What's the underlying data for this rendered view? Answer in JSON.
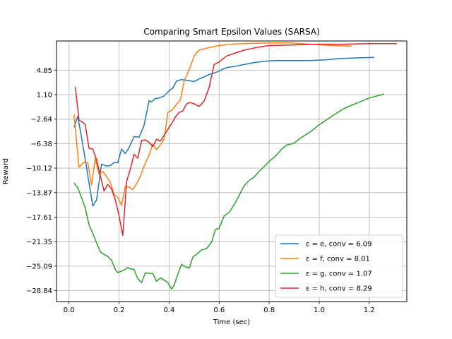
{
  "chart_data": {
    "type": "line",
    "title": "Comparing Smart Epsilon Values (SARSA)",
    "xlabel": "Time (sec)",
    "ylabel": "Reward",
    "xlim": [
      -0.05,
      1.35
    ],
    "ylim": [
      -30.5,
      9.3
    ],
    "xticks": [
      0.0,
      0.2,
      0.4,
      0.6,
      0.8,
      1.0,
      1.2
    ],
    "xtick_labels": [
      "0.0",
      "0.2",
      "0.4",
      "0.6",
      "0.8",
      "1.0",
      "1.2"
    ],
    "yticks": [
      4.85,
      1.1,
      -2.64,
      -6.38,
      -10.12,
      -13.87,
      -17.61,
      -21.35,
      -25.09,
      -28.84
    ],
    "ytick_labels": [
      "4.85",
      "1.10",
      "−2.64",
      "−6.38",
      "−10.12",
      "−13.87",
      "−17.61",
      "−21.35",
      "−25.09",
      "−28.84"
    ],
    "grid": true,
    "legend_position": "bottom-right",
    "series": [
      {
        "name": "ε = e, conv = 6.09",
        "color": "#1f77b4",
        "x": [
          0.02,
          0.035,
          0.05,
          0.065,
          0.08,
          0.095,
          0.11,
          0.13,
          0.15,
          0.165,
          0.18,
          0.195,
          0.21,
          0.225,
          0.24,
          0.26,
          0.28,
          0.3,
          0.32,
          0.33,
          0.345,
          0.36,
          0.38,
          0.4,
          0.415,
          0.43,
          0.45,
          0.47,
          0.5,
          0.52,
          0.54,
          0.56,
          0.58,
          0.6,
          0.62,
          0.64,
          0.66,
          0.7,
          0.74,
          0.78,
          0.82,
          0.86,
          0.9,
          0.96,
          1.02,
          1.08,
          1.14,
          1.22
        ],
        "y": [
          -3.9,
          -2.2,
          -5.4,
          -8.8,
          -12.4,
          -15.9,
          -15.0,
          -9.5,
          -9.8,
          -9.7,
          -9.3,
          -9.3,
          -7.2,
          -7.9,
          -7.0,
          -5.3,
          -5.4,
          -3.6,
          0.2,
          0.0,
          0.5,
          0.6,
          0.9,
          1.7,
          2.1,
          3.2,
          3.4,
          3.3,
          3.1,
          3.5,
          3.8,
          4.2,
          4.4,
          4.7,
          5.1,
          5.3,
          5.4,
          5.7,
          6.0,
          6.2,
          6.3,
          6.3,
          6.3,
          6.3,
          6.4,
          6.6,
          6.7,
          6.8
        ]
      },
      {
        "name": "ε = f, conv = 8.01",
        "color": "#ff7f0e",
        "x": [
          0.02,
          0.04,
          0.06,
          0.075,
          0.09,
          0.105,
          0.12,
          0.135,
          0.15,
          0.165,
          0.18,
          0.195,
          0.21,
          0.225,
          0.24,
          0.255,
          0.27,
          0.285,
          0.3,
          0.32,
          0.335,
          0.35,
          0.365,
          0.38,
          0.395,
          0.41,
          0.43,
          0.445,
          0.46,
          0.48,
          0.5,
          0.52,
          0.56,
          0.6,
          0.65,
          0.7,
          0.8,
          0.88,
          0.96,
          1.05,
          1.13
        ],
        "y": [
          -1.9,
          -10.0,
          -9.2,
          -9.3,
          -12.7,
          -8.6,
          -11.1,
          -10.6,
          -11.4,
          -12.3,
          -14.1,
          -14.6,
          -15.8,
          -12.9,
          -13.0,
          -13.4,
          -12.5,
          -11.4,
          -9.8,
          -8.1,
          -6.5,
          -7.3,
          -6.6,
          -5.7,
          -1.6,
          -1.3,
          -0.4,
          0.3,
          3.2,
          4.9,
          7.0,
          7.9,
          8.3,
          8.6,
          8.8,
          8.9,
          9.0,
          9.0,
          8.8,
          8.6,
          8.5
        ]
      },
      {
        "name": "ε = g, conv = 1.07",
        "color": "#2ca02c",
        "x": [
          0.02,
          0.035,
          0.05,
          0.065,
          0.08,
          0.095,
          0.11,
          0.125,
          0.14,
          0.155,
          0.17,
          0.185,
          0.195,
          0.205,
          0.22,
          0.235,
          0.245,
          0.26,
          0.275,
          0.29,
          0.305,
          0.32,
          0.335,
          0.35,
          0.365,
          0.38,
          0.395,
          0.41,
          0.42,
          0.435,
          0.45,
          0.465,
          0.48,
          0.495,
          0.51,
          0.53,
          0.55,
          0.57,
          0.585,
          0.6,
          0.62,
          0.64,
          0.66,
          0.68,
          0.7,
          0.72,
          0.74,
          0.76,
          0.78,
          0.8,
          0.83,
          0.85,
          0.87,
          0.9,
          0.93,
          0.96,
          1.0,
          1.05,
          1.1,
          1.15,
          1.2,
          1.26
        ],
        "y": [
          -12.4,
          -13.1,
          -14.6,
          -16.2,
          -18.8,
          -20.1,
          -21.5,
          -22.9,
          -23.3,
          -23.6,
          -24.2,
          -25.6,
          -26.1,
          -25.9,
          -25.7,
          -25.3,
          -25.5,
          -25.6,
          -27.0,
          -27.6,
          -26.1,
          -26.2,
          -26.2,
          -27.4,
          -26.9,
          -27.2,
          -27.6,
          -28.6,
          -28.0,
          -26.3,
          -24.8,
          -25.2,
          -25.4,
          -23.7,
          -23.3,
          -22.6,
          -22.4,
          -21.4,
          -19.5,
          -19.3,
          -17.4,
          -16.9,
          -15.7,
          -14.3,
          -12.8,
          -12.0,
          -11.5,
          -10.6,
          -9.9,
          -9.1,
          -8.1,
          -7.2,
          -6.6,
          -6.3,
          -5.4,
          -4.7,
          -3.5,
          -2.2,
          -1.0,
          -0.2,
          0.6,
          1.2
        ]
      },
      {
        "name": "ε = h, conv = 8.29",
        "color": "#d62728",
        "x": [
          0.025,
          0.04,
          0.055,
          0.065,
          0.08,
          0.095,
          0.11,
          0.125,
          0.14,
          0.155,
          0.17,
          0.185,
          0.2,
          0.215,
          0.23,
          0.245,
          0.26,
          0.275,
          0.29,
          0.305,
          0.32,
          0.335,
          0.35,
          0.365,
          0.38,
          0.395,
          0.41,
          0.425,
          0.44,
          0.455,
          0.47,
          0.485,
          0.5,
          0.52,
          0.54,
          0.56,
          0.58,
          0.6,
          0.63,
          0.66,
          0.7,
          0.75,
          0.8,
          0.9,
          1.0,
          1.1,
          1.2,
          1.31
        ],
        "y": [
          2.3,
          -2.8,
          -3.1,
          -3.5,
          -7.1,
          -7.2,
          -8.8,
          -11.2,
          -13.6,
          -12.6,
          -13.3,
          -15.0,
          -17.4,
          -20.4,
          -12.2,
          -10.3,
          -8.0,
          -8.6,
          -5.9,
          -5.8,
          -6.2,
          -6.8,
          -5.7,
          -6.0,
          -5.1,
          -4.2,
          -3.3,
          -2.3,
          -1.6,
          -1.4,
          -0.3,
          -0.1,
          -0.3,
          -0.7,
          0.1,
          2.2,
          5.7,
          6.1,
          7.0,
          7.4,
          7.9,
          8.3,
          8.6,
          8.7,
          8.8,
          8.8,
          8.9,
          8.9
        ]
      }
    ]
  }
}
